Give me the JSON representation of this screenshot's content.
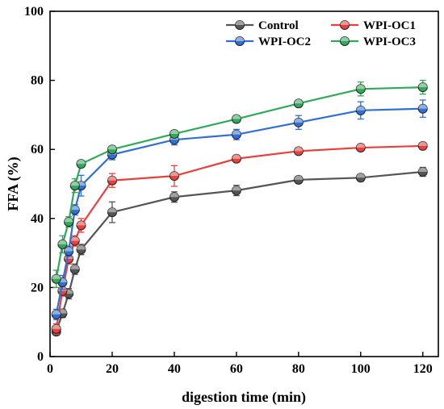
{
  "chart_data": {
    "type": "line",
    "title": "",
    "xlabel": "digestion time (min)",
    "ylabel": "FFA (%)",
    "xlim": [
      0,
      125
    ],
    "ylim": [
      0,
      100
    ],
    "xticks": [
      0,
      20,
      40,
      60,
      80,
      100,
      120
    ],
    "yticks": [
      0,
      20,
      40,
      60,
      80,
      100
    ],
    "grid": false,
    "legend": "top-right",
    "x": [
      2,
      4,
      6,
      8,
      10,
      20,
      40,
      60,
      80,
      100,
      120
    ],
    "series": [
      {
        "name": "Control",
        "color": "#555555",
        "values": [
          7.2,
          12.5,
          18.2,
          25.3,
          31.0,
          41.8,
          46.2,
          48.1,
          51.2,
          51.8,
          53.5
        ],
        "errors": [
          1.0,
          1.2,
          1.5,
          1.5,
          1.5,
          3.0,
          1.5,
          1.5,
          1.0,
          1.0,
          1.3
        ]
      },
      {
        "name": "WPI-OC1",
        "color": "#e8413c",
        "values": [
          8.0,
          19.0,
          28.3,
          33.5,
          38.0,
          51.0,
          52.3,
          57.3,
          59.5,
          60.5,
          61.0
        ],
        "errors": [
          1.5,
          1.5,
          1.5,
          1.5,
          2.0,
          2.0,
          3.0,
          1.0,
          1.0,
          1.0,
          1.0
        ]
      },
      {
        "name": "WPI-OC2",
        "color": "#2f6fd6",
        "values": [
          12.2,
          21.5,
          30.5,
          42.5,
          49.5,
          58.5,
          62.8,
          64.3,
          67.8,
          71.3,
          71.8
        ],
        "errors": [
          1.5,
          2.0,
          1.5,
          1.5,
          3.0,
          1.5,
          1.5,
          1.5,
          2.0,
          2.5,
          2.5
        ]
      },
      {
        "name": "WPI-OC3",
        "color": "#2faa5a",
        "values": [
          22.5,
          32.5,
          39.0,
          49.5,
          55.8,
          60.0,
          64.5,
          68.8,
          73.3,
          77.5,
          78.0
        ],
        "errors": [
          2.5,
          2.5,
          1.5,
          2.0,
          1.0,
          1.0,
          1.0,
          1.0,
          1.0,
          2.0,
          2.0
        ]
      }
    ]
  }
}
